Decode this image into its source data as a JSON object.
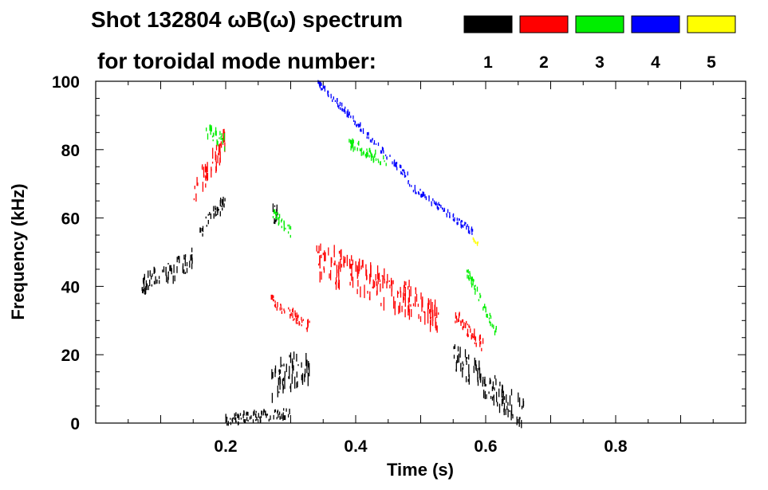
{
  "chart_data": {
    "type": "scatter",
    "title": "Shot 132804 ωB(ω) spectrum",
    "subtitle": "for toroidal mode number:",
    "xlabel": "Time (s)",
    "ylabel": "Frequency (kHz)",
    "xlim": [
      0.0,
      1.0
    ],
    "ylim": [
      0,
      100
    ],
    "x_ticks": [
      0.2,
      0.4,
      0.6,
      0.8
    ],
    "x_tick_labels": [
      "0.2",
      "0.4",
      "0.6",
      "0.8"
    ],
    "y_ticks": [
      0,
      20,
      40,
      60,
      80,
      100
    ],
    "y_tick_labels": [
      "0",
      "20",
      "40",
      "60",
      "80",
      "100"
    ],
    "legend": {
      "placement": "top-right",
      "entries": [
        {
          "label": "1",
          "color": "#000000"
        },
        {
          "label": "2",
          "color": "#ff0000"
        },
        {
          "label": "3",
          "color": "#00ee00"
        },
        {
          "label": "4",
          "color": "#0000ff"
        },
        {
          "label": "5",
          "color": "#ffff00"
        }
      ]
    },
    "series": [
      {
        "name": "n=1",
        "color": "#000000",
        "clusters": [
          {
            "t0": 0.07,
            "f0": 40,
            "t1": 0.15,
            "f1": 48,
            "spread": 6
          },
          {
            "t0": 0.16,
            "f0": 56,
            "t1": 0.2,
            "f1": 65,
            "spread": 4
          },
          {
            "t0": 0.27,
            "f0": 12,
            "t1": 0.33,
            "f1": 18,
            "spread": 10
          },
          {
            "t0": 0.2,
            "f0": 1,
            "t1": 0.3,
            "f1": 3,
            "spread": 3
          },
          {
            "t0": 0.55,
            "f0": 20,
            "t1": 0.66,
            "f1": 2,
            "spread": 8
          },
          {
            "t0": 0.27,
            "f0": 60,
            "t1": 0.28,
            "f1": 62,
            "spread": 6
          }
        ]
      },
      {
        "name": "n=2",
        "color": "#ff0000",
        "clusters": [
          {
            "t0": 0.15,
            "f0": 68,
            "t1": 0.2,
            "f1": 82,
            "spread": 8
          },
          {
            "t0": 0.34,
            "f0": 48,
            "t1": 0.53,
            "f1": 32,
            "spread": 10
          },
          {
            "t0": 0.27,
            "f0": 36,
            "t1": 0.33,
            "f1": 28,
            "spread": 3
          },
          {
            "t0": 0.55,
            "f0": 32,
            "t1": 0.6,
            "f1": 22,
            "spread": 4
          }
        ]
      },
      {
        "name": "n=3",
        "color": "#00ee00",
        "clusters": [
          {
            "t0": 0.17,
            "f0": 86,
            "t1": 0.2,
            "f1": 82,
            "spread": 4
          },
          {
            "t0": 0.39,
            "f0": 82,
            "t1": 0.45,
            "f1": 76,
            "spread": 3
          },
          {
            "t0": 0.57,
            "f0": 45,
            "t1": 0.62,
            "f1": 25,
            "spread": 3
          },
          {
            "t0": 0.27,
            "f0": 62,
            "t1": 0.3,
            "f1": 56,
            "spread": 3
          }
        ]
      },
      {
        "name": "n=4",
        "color": "#0000ff",
        "clusters": [
          {
            "t0": 0.34,
            "f0": 100,
            "t1": 0.48,
            "f1": 72,
            "spread": 2
          },
          {
            "t0": 0.48,
            "f0": 70,
            "t1": 0.58,
            "f1": 56,
            "spread": 2
          }
        ]
      },
      {
        "name": "n=5",
        "color": "#ffff00",
        "clusters": [
          {
            "t0": 0.58,
            "f0": 54,
            "t1": 0.59,
            "f1": 52,
            "spread": 1
          }
        ]
      }
    ]
  }
}
